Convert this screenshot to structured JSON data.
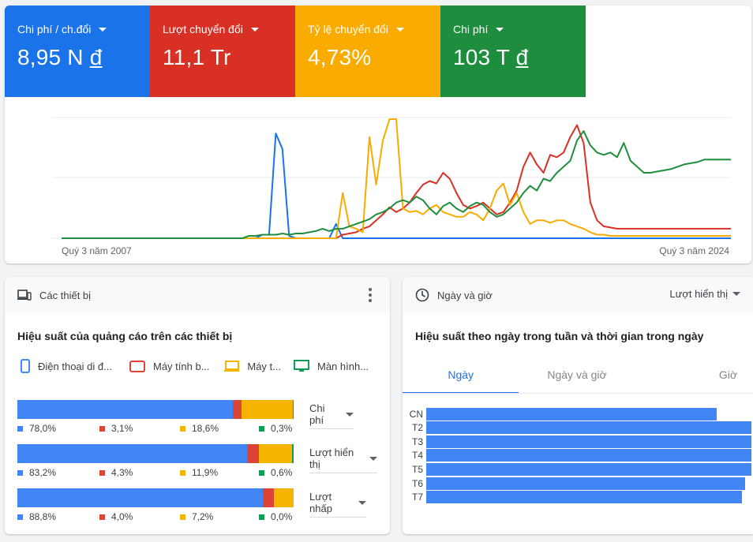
{
  "colors": {
    "blue": "#4285f4",
    "red": "#db4437",
    "yellow": "#f4b400",
    "green": "#0f9d58"
  },
  "metrics": [
    {
      "label": "Chi phí / ch.đổi",
      "value": "8,95 N",
      "currency": "đ",
      "color": "#1a73e8"
    },
    {
      "label": "Lượt chuyển đổi",
      "value": "11,1 Tr",
      "currency": "",
      "color": "#d93025"
    },
    {
      "label": "Tỷ lệ chuyển đổi",
      "value": "4,73%",
      "currency": "",
      "color": "#f9ab00"
    },
    {
      "label": "Chi phí",
      "value": "103 T",
      "currency": "đ",
      "color": "#1e8e3e"
    }
  ],
  "chart_data": {
    "type": "line",
    "x_start_label": "Quý 3 năm 2007",
    "x_end_label": "Quý 3 năm 2024",
    "y_gridlines": 3,
    "ylim": [
      0,
      100
    ],
    "series": [
      {
        "color": "#1a73e8",
        "values": [
          0,
          0,
          0,
          0,
          0,
          0,
          0,
          0,
          0,
          0,
          0,
          0,
          0,
          0,
          0,
          0,
          0,
          0,
          0,
          0,
          0,
          0,
          0,
          0,
          0,
          0,
          0,
          0,
          0,
          0,
          3,
          3,
          88,
          75,
          2,
          0,
          0,
          0,
          0,
          0,
          0,
          12,
          0,
          0,
          0,
          0,
          0,
          0,
          0,
          0,
          0,
          0,
          0,
          0,
          0,
          0,
          0,
          0,
          0,
          0,
          0,
          0,
          0,
          0,
          0,
          0,
          0,
          0,
          0,
          0,
          0,
          0,
          0,
          0,
          0,
          0,
          0,
          0,
          0,
          0,
          0,
          0,
          0,
          0,
          0,
          0,
          0,
          0,
          0,
          0,
          0,
          0,
          0,
          0,
          0,
          0,
          0,
          0,
          0,
          0,
          0
        ]
      },
      {
        "color": "#d93025",
        "values": [
          0,
          0,
          0,
          0,
          0,
          0,
          0,
          0,
          0,
          0,
          0,
          0,
          0,
          0,
          0,
          0,
          0,
          0,
          0,
          0,
          0,
          0,
          0,
          0,
          0,
          0,
          0,
          0,
          0,
          0,
          0,
          0,
          0,
          0,
          0,
          0,
          0,
          0,
          0,
          0,
          0,
          0,
          3,
          4,
          5,
          8,
          10,
          15,
          20,
          26,
          22,
          25,
          30,
          38,
          45,
          48,
          46,
          55,
          50,
          38,
          28,
          25,
          27,
          30,
          25,
          20,
          22,
          30,
          40,
          60,
          72,
          62,
          55,
          70,
          68,
          72,
          85,
          95,
          80,
          30,
          15,
          10,
          9,
          8,
          8,
          8,
          8,
          8,
          8,
          8,
          8,
          8,
          8,
          8,
          8,
          8,
          8,
          8,
          8,
          8,
          8
        ]
      },
      {
        "color": "#f9ab00",
        "values": [
          0,
          0,
          0,
          0,
          0,
          0,
          0,
          0,
          0,
          0,
          0,
          0,
          0,
          0,
          0,
          0,
          0,
          0,
          0,
          0,
          0,
          0,
          0,
          0,
          0,
          0,
          0,
          0,
          0,
          0,
          0,
          0,
          0,
          0,
          0,
          0,
          0,
          0,
          0,
          0,
          0,
          0,
          38,
          10,
          8,
          5,
          85,
          45,
          82,
          100,
          100,
          25,
          22,
          23,
          20,
          25,
          28,
          22,
          20,
          18,
          18,
          22,
          20,
          15,
          25,
          40,
          46,
          28,
          38,
          22,
          12,
          15,
          15,
          13,
          15,
          15,
          12,
          10,
          8,
          5,
          3,
          3,
          2,
          2,
          2,
          2,
          2,
          2,
          2,
          2,
          2,
          2,
          2,
          2,
          2,
          2,
          2,
          2,
          2,
          2,
          2
        ]
      },
      {
        "color": "#1e8e3e",
        "values": [
          0,
          0,
          0,
          0,
          0,
          0,
          0,
          0,
          0,
          0,
          0,
          0,
          0,
          0,
          0,
          0,
          0,
          0,
          0,
          0,
          0,
          0,
          0,
          0,
          0,
          0,
          0,
          0,
          2,
          2,
          3,
          3,
          3,
          4,
          3,
          4,
          4,
          5,
          6,
          8,
          6,
          8,
          8,
          10,
          12,
          14,
          16,
          20,
          22,
          25,
          30,
          32,
          30,
          35,
          32,
          25,
          20,
          27,
          30,
          25,
          22,
          27,
          30,
          28,
          22,
          18,
          20,
          25,
          30,
          38,
          44,
          40,
          50,
          48,
          55,
          60,
          65,
          82,
          90,
          78,
          72,
          70,
          72,
          68,
          80,
          65,
          60,
          55,
          55,
          56,
          57,
          58,
          60,
          62,
          63,
          64,
          66,
          66,
          66,
          66,
          66
        ]
      }
    ]
  },
  "devices": {
    "header": "Các thiết bị",
    "title": "Hiệu suất của quảng cáo trên các thiết bị",
    "legend": [
      {
        "label": "Điện thoại di đ...",
        "icon": "mobile-icon",
        "color": "#4285f4"
      },
      {
        "label": "Máy tính b...",
        "icon": "tablet-icon",
        "color": "#db4437"
      },
      {
        "label": "Máy t...",
        "icon": "laptop-icon",
        "color": "#f4b400"
      },
      {
        "label": "Màn hình...",
        "icon": "tv-icon",
        "color": "#0f9d58"
      }
    ],
    "rows": [
      {
        "metric": "Chi phí",
        "values": [
          78.0,
          3.1,
          18.6,
          0.3
        ],
        "labels": [
          "78,0%",
          "3,1%",
          "18,6%",
          "0,3%"
        ]
      },
      {
        "metric": "Lượt hiển thị",
        "values": [
          83.2,
          4.3,
          11.9,
          0.6
        ],
        "labels": [
          "83,2%",
          "4,3%",
          "11,9%",
          "0,6%"
        ]
      },
      {
        "metric": "Lượt nhấp",
        "values": [
          88.8,
          4.0,
          7.2,
          0.0
        ],
        "labels": [
          "88,8%",
          "4,0%",
          "7,2%",
          "0,0%"
        ]
      }
    ]
  },
  "daytime": {
    "header": "Ngày và giờ",
    "metric_select": "Lượt hiển thị",
    "title": "Hiệu suất theo ngày trong tuần và thời gian trong ngày",
    "tabs": [
      "Ngày",
      "Ngày và giờ",
      "Giờ"
    ],
    "days": [
      {
        "label": "CN",
        "value": 89.4
      },
      {
        "label": "T2",
        "value": 100
      },
      {
        "label": "T3",
        "value": 100
      },
      {
        "label": "T4",
        "value": 100
      },
      {
        "label": "T5",
        "value": 100
      },
      {
        "label": "T6",
        "value": 98
      },
      {
        "label": "T7",
        "value": 97
      }
    ]
  }
}
